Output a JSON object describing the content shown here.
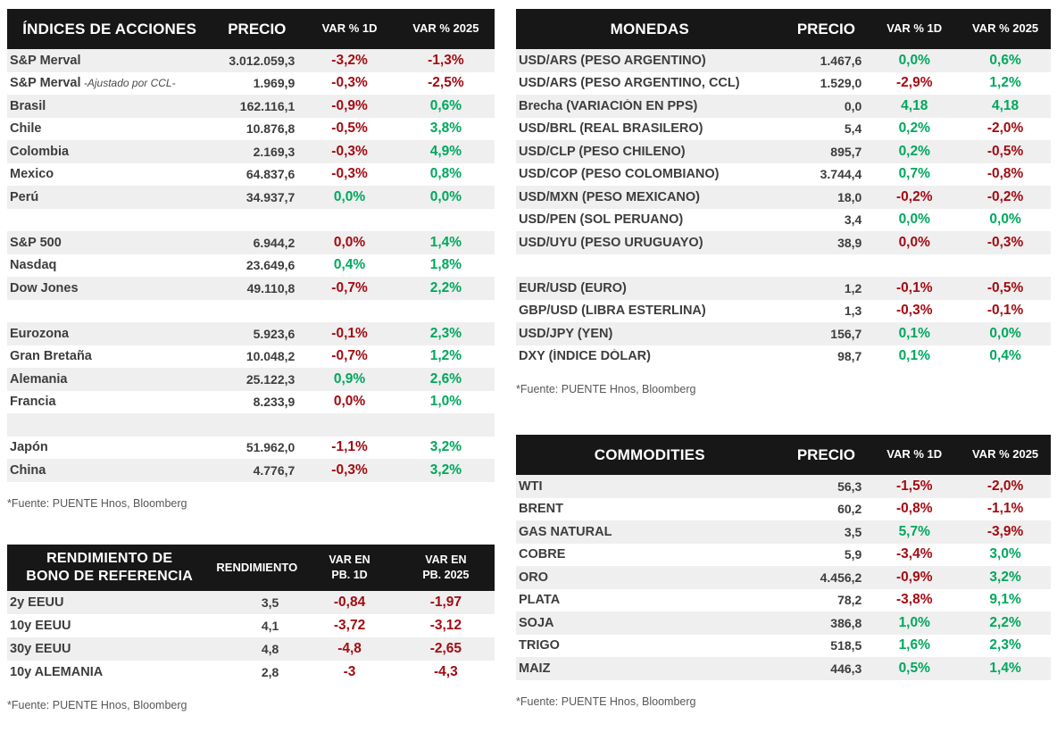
{
  "colors": {
    "positive": "#00a85d",
    "negative": "#a30b12",
    "header_bg": "#171717",
    "header_text": "#ffffff",
    "row_alt": "#efefef",
    "text_dark": "#3d3d3d",
    "source_text": "#575757"
  },
  "source_note": "*Fuente: PUENTE Hnos, Bloomberg",
  "tables": {
    "indices": {
      "title": "ÍNDICES DE ACCIONES",
      "price_header": "PRECIO",
      "var1d_header": "VAR % 1D",
      "var2025_header": "VAR % 2025",
      "rows": [
        {
          "label": "S&P Merval",
          "price": "3.012.059,3",
          "var1d": "-3,2%",
          "d1": "down",
          "var2025": "-1,3%",
          "d2": "down"
        },
        {
          "label": "S&P Merval",
          "note": "-Ajustado por CCL-",
          "price": "1.969,9",
          "var1d": "-0,3%",
          "d1": "down",
          "var2025": "-2,5%",
          "d2": "down"
        },
        {
          "label": "Brasil",
          "price": "162.116,1",
          "var1d": "-0,9%",
          "d1": "down",
          "var2025": "0,6%",
          "d2": "up"
        },
        {
          "label": "Chile",
          "price": "10.876,8",
          "var1d": "-0,5%",
          "d1": "down",
          "var2025": "3,8%",
          "d2": "up"
        },
        {
          "label": "Colombia",
          "price": "2.169,3",
          "var1d": "-0,3%",
          "d1": "down",
          "var2025": "4,9%",
          "d2": "up"
        },
        {
          "label": "Mexico",
          "price": "64.837,6",
          "var1d": "-0,3%",
          "d1": "down",
          "var2025": "0,8%",
          "d2": "up"
        },
        {
          "label": "Perú",
          "price": "34.937,7",
          "var1d": "0,0%",
          "d1": "up",
          "var2025": "0,0%",
          "d2": "up"
        },
        {
          "blank": true
        },
        {
          "label": "S&P 500",
          "price": "6.944,2",
          "var1d": "0,0%",
          "d1": "down",
          "var2025": "1,4%",
          "d2": "up"
        },
        {
          "label": "Nasdaq",
          "price": "23.649,6",
          "var1d": "0,4%",
          "d1": "up",
          "var2025": "1,8%",
          "d2": "up"
        },
        {
          "label": "Dow Jones",
          "price": "49.110,8",
          "var1d": "-0,7%",
          "d1": "down",
          "var2025": "2,2%",
          "d2": "up"
        },
        {
          "blank": true
        },
        {
          "label": "Eurozona",
          "price": "5.923,6",
          "var1d": "-0,1%",
          "d1": "down",
          "var2025": "2,3%",
          "d2": "up"
        },
        {
          "label": "Gran Bretaña",
          "price": "10.048,2",
          "var1d": "-0,7%",
          "d1": "down",
          "var2025": "1,2%",
          "d2": "up"
        },
        {
          "label": "Alemania",
          "price": "25.122,3",
          "var1d": "0,9%",
          "d1": "up",
          "var2025": "2,6%",
          "d2": "up"
        },
        {
          "label": "Francia",
          "price": "8.233,9",
          "var1d": "0,0%",
          "d1": "down",
          "var2025": "1,0%",
          "d2": "up"
        },
        {
          "blank": true
        },
        {
          "label": "Japón",
          "price": "51.962,0",
          "var1d": "-1,1%",
          "d1": "down",
          "var2025": "3,2%",
          "d2": "up"
        },
        {
          "label": "China",
          "price": "4.776,7",
          "var1d": "-0,3%",
          "d1": "down",
          "var2025": "3,2%",
          "d2": "up"
        }
      ]
    },
    "bonds": {
      "title": "RENDIMIENTO DE\nBONO DE REFERENCIA",
      "price_header": "RENDIMIENTO",
      "var1d_header": "VAR EN\nPB. 1D",
      "var2025_header": "VAR EN\nPB. 2025",
      "rows": [
        {
          "label": "2y EEUU",
          "price": "3,5",
          "var1d": "-0,84",
          "d1": "down",
          "var2025": "-1,97",
          "d2": "down"
        },
        {
          "label": "10y EEUU",
          "price": "4,1",
          "var1d": "-3,72",
          "d1": "down",
          "var2025": "-3,12",
          "d2": "down"
        },
        {
          "label": "30y EEUU",
          "price": "4,8",
          "var1d": "-4,8",
          "d1": "down",
          "var2025": "-2,65",
          "d2": "down"
        },
        {
          "label": "10y ALEMANIA",
          "price": "2,8",
          "var1d": "-3",
          "d1": "down",
          "var2025": "-4,3",
          "d2": "down"
        }
      ]
    },
    "monedas": {
      "title": "MONEDAS",
      "price_header": "PRECIO",
      "var1d_header": "VAR % 1D",
      "var2025_header": "VAR % 2025",
      "rows": [
        {
          "label": "USD/ARS (PESO ARGENTINO)",
          "price": "1.467,6",
          "var1d": "0,0%",
          "d1": "up",
          "var2025": "0,6%",
          "d2": "up"
        },
        {
          "label": "USD/ARS (PESO ARGENTINO, CCL)",
          "price": "1.529,0",
          "var1d": "-2,9%",
          "d1": "down",
          "var2025": "1,2%",
          "d2": "up"
        },
        {
          "label": "Brecha (VARIACIÓN EN PPS)",
          "price": "0,0",
          "var1d": "4,18",
          "d1": "up",
          "var2025": "4,18",
          "d2": "up"
        },
        {
          "label": "USD/BRL (REAL BRASILERO)",
          "price": "5,4",
          "var1d": "0,2%",
          "d1": "up",
          "var2025": "-2,0%",
          "d2": "down"
        },
        {
          "label": "USD/CLP (PESO CHILENO)",
          "price": "895,7",
          "var1d": "0,2%",
          "d1": "up",
          "var2025": "-0,5%",
          "d2": "down"
        },
        {
          "label": "USD/COP (PESO COLOMBIANO)",
          "price": "3.744,4",
          "var1d": "0,7%",
          "d1": "up",
          "var2025": "-0,8%",
          "d2": "down"
        },
        {
          "label": "USD/MXN (PESO MEXICANO)",
          "price": "18,0",
          "var1d": "-0,2%",
          "d1": "down",
          "var2025": "-0,2%",
          "d2": "down"
        },
        {
          "label": "USD/PEN (SOL PERUANO)",
          "price": "3,4",
          "var1d": "0,0%",
          "d1": "up",
          "var2025": "0,0%",
          "d2": "up"
        },
        {
          "label": "USD/UYU (PESO URUGUAYO)",
          "price": "38,9",
          "var1d": "0,0%",
          "d1": "down",
          "var2025": "-0,3%",
          "d2": "down"
        },
        {
          "blank": true
        },
        {
          "label": "EUR/USD (EURO)",
          "price": "1,2",
          "var1d": "-0,1%",
          "d1": "down",
          "var2025": "-0,5%",
          "d2": "down"
        },
        {
          "label": "GBP/USD (LIBRA ESTERLINA)",
          "price": "1,3",
          "var1d": "-0,3%",
          "d1": "down",
          "var2025": "-0,1%",
          "d2": "down"
        },
        {
          "label": "USD/JPY (YEN)",
          "price": "156,7",
          "var1d": "0,1%",
          "d1": "up",
          "var2025": "0,0%",
          "d2": "up"
        },
        {
          "label": "DXY (ÍNDICE DÓLAR)",
          "price": "98,7",
          "var1d": "0,1%",
          "d1": "up",
          "var2025": "0,4%",
          "d2": "up"
        }
      ]
    },
    "commodities": {
      "title": "COMMODITIES",
      "price_header": "PRECIO",
      "var1d_header": "VAR % 1D",
      "var2025_header": "VAR % 2025",
      "rows": [
        {
          "label": "WTI",
          "price": "56,3",
          "var1d": "-1,5%",
          "d1": "down",
          "var2025": "-2,0%",
          "d2": "down"
        },
        {
          "label": "BRENT",
          "price": "60,2",
          "var1d": "-0,8%",
          "d1": "down",
          "var2025": "-1,1%",
          "d2": "down"
        },
        {
          "label": "GAS NATURAL",
          "price": "3,5",
          "var1d": "5,7%",
          "d1": "up",
          "var2025": "-3,9%",
          "d2": "down"
        },
        {
          "label": "COBRE",
          "price": "5,9",
          "var1d": "-3,4%",
          "d1": "down",
          "var2025": "3,0%",
          "d2": "up"
        },
        {
          "label": "ORO",
          "price": "4.456,2",
          "var1d": "-0,9%",
          "d1": "down",
          "var2025": "3,2%",
          "d2": "up"
        },
        {
          "label": "PLATA",
          "price": "78,2",
          "var1d": "-3,8%",
          "d1": "down",
          "var2025": "9,1%",
          "d2": "up"
        },
        {
          "label": "SOJA",
          "price": "386,8",
          "var1d": "1,0%",
          "d1": "up",
          "var2025": "2,2%",
          "d2": "up"
        },
        {
          "label": "TRIGO",
          "price": "518,5",
          "var1d": "1,6%",
          "d1": "up",
          "var2025": "2,3%",
          "d2": "up"
        },
        {
          "label": "MAIZ",
          "price": "446,3",
          "var1d": "0,5%",
          "d1": "up",
          "var2025": "1,4%",
          "d2": "up"
        }
      ]
    }
  }
}
